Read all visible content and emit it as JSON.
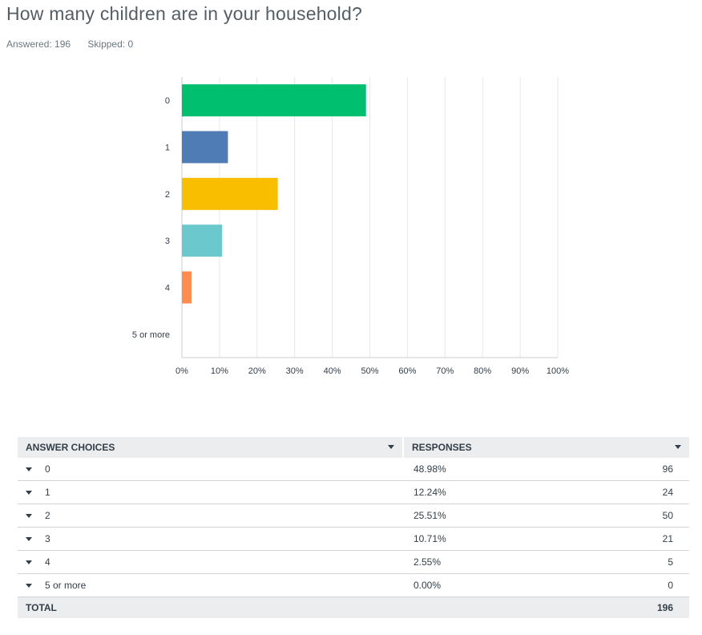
{
  "question": {
    "title": "How many children are in your household?",
    "answered_label": "Answered: 196",
    "skipped_label": "Skipped: 0"
  },
  "chart_data": {
    "type": "bar",
    "orientation": "horizontal",
    "categories": [
      "0",
      "1",
      "2",
      "3",
      "4",
      "5 or more"
    ],
    "values": [
      48.98,
      12.24,
      25.51,
      10.71,
      2.55,
      0.0
    ],
    "colors": [
      "#00bf6f",
      "#507cb6",
      "#f9be00",
      "#6bc8cd",
      "#ff8b4f",
      "#7d5e90"
    ],
    "xlim": [
      0,
      100
    ],
    "xticks": [
      "0%",
      "10%",
      "20%",
      "30%",
      "40%",
      "50%",
      "60%",
      "70%",
      "80%",
      "90%",
      "100%"
    ],
    "grid": true
  },
  "table": {
    "headers": {
      "choices": "ANSWER CHOICES",
      "responses": "RESPONSES"
    },
    "rows": [
      {
        "choice": "0",
        "percent": "48.98%",
        "count": "96"
      },
      {
        "choice": "1",
        "percent": "12.24%",
        "count": "24"
      },
      {
        "choice": "2",
        "percent": "25.51%",
        "count": "50"
      },
      {
        "choice": "3",
        "percent": "10.71%",
        "count": "21"
      },
      {
        "choice": "4",
        "percent": "2.55%",
        "count": "5"
      },
      {
        "choice": "5 or more",
        "percent": "0.00%",
        "count": "0"
      }
    ],
    "total": {
      "label": "TOTAL",
      "count": "196"
    }
  }
}
